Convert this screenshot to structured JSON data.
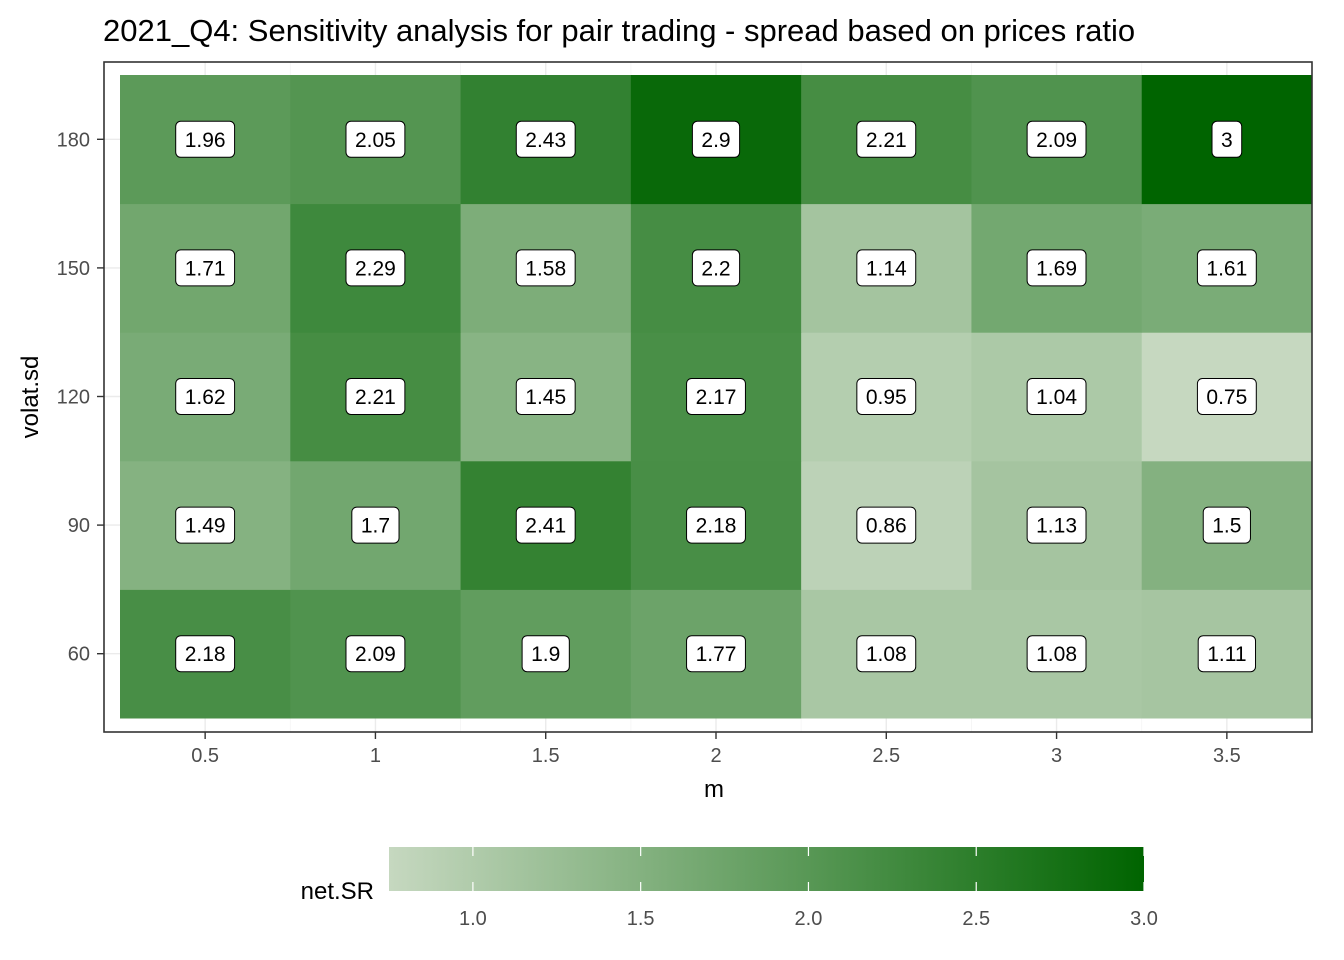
{
  "chart_data": {
    "type": "heatmap",
    "title": "2021_Q4: Sensitivity analysis for pair trading - spread based on prices ratio",
    "xlabel": "m",
    "ylabel": "volat.sd",
    "x": [
      0.5,
      1,
      1.5,
      2,
      2.5,
      3,
      3.5
    ],
    "x_tick_labels": [
      "0.5",
      "1",
      "1.5",
      "2",
      "2.5",
      "3",
      "3.5"
    ],
    "y": [
      60,
      90,
      120,
      150,
      180
    ],
    "y_tick_labels": [
      "60",
      "90",
      "120",
      "150",
      "180"
    ],
    "values": [
      [
        2.18,
        2.09,
        1.9,
        1.77,
        1.08,
        1.08,
        1.11
      ],
      [
        1.49,
        1.7,
        2.41,
        2.18,
        0.86,
        1.13,
        1.5
      ],
      [
        1.62,
        2.21,
        1.45,
        2.17,
        0.95,
        1.04,
        0.75
      ],
      [
        1.71,
        2.29,
        1.58,
        2.2,
        1.14,
        1.69,
        1.61
      ],
      [
        1.96,
        2.05,
        2.43,
        2.9,
        2.21,
        2.09,
        3
      ]
    ],
    "value_labels": [
      [
        "2.18",
        "2.09",
        "1.9",
        "1.77",
        "1.08",
        "1.08",
        "1.11"
      ],
      [
        "1.49",
        "1.7",
        "2.41",
        "2.18",
        "0.86",
        "1.13",
        "1.5"
      ],
      [
        "1.62",
        "2.21",
        "1.45",
        "2.17",
        "0.95",
        "1.04",
        "0.75"
      ],
      [
        "1.71",
        "2.29",
        "1.58",
        "2.2",
        "1.14",
        "1.69",
        "1.61"
      ],
      [
        "1.96",
        "2.05",
        "2.43",
        "2.9",
        "2.21",
        "2.09",
        "3"
      ]
    ],
    "color_scale": {
      "title": "net.SR",
      "low_value": 0.75,
      "high_value": 3,
      "low_color": "#c6d8c0",
      "high_color": "#006400",
      "ticks": [
        1.0,
        1.5,
        2.0,
        2.5,
        3.0
      ],
      "tick_labels": [
        "1.0",
        "1.5",
        "2.0",
        "2.5",
        "3.0"
      ]
    },
    "legend_placement": "bottom",
    "grid": true,
    "colors": {
      "panel_border": "#333333",
      "grid_major": "#ebebeb",
      "grid_minor": "#f5f5f5",
      "label_fill": "#ffffff",
      "label_border": "#000000",
      "tick_text": "#4d4d4d"
    }
  }
}
